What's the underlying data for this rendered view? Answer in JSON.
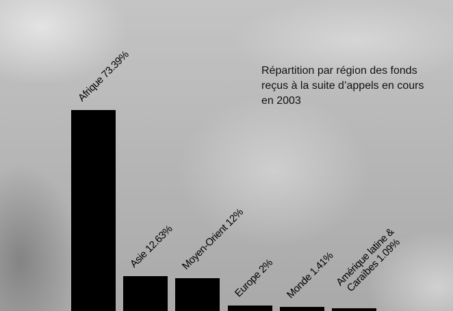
{
  "chart_data": {
    "type": "bar",
    "title": "Répartition par région des fonds reçus à la suite d’appels en cours en 2003",
    "categories": [
      "Afrique",
      "Asie",
      "Moyen-Orient",
      "Europe",
      "Monde",
      "Amérique latine & Caraïbes"
    ],
    "values": [
      73.39,
      12.63,
      12,
      2,
      1.41,
      1.09
    ],
    "value_labels": [
      "73.39%",
      "12.63%",
      "12%",
      "2%",
      "1.41%",
      "1.09%"
    ],
    "color": "#000000"
  }
}
